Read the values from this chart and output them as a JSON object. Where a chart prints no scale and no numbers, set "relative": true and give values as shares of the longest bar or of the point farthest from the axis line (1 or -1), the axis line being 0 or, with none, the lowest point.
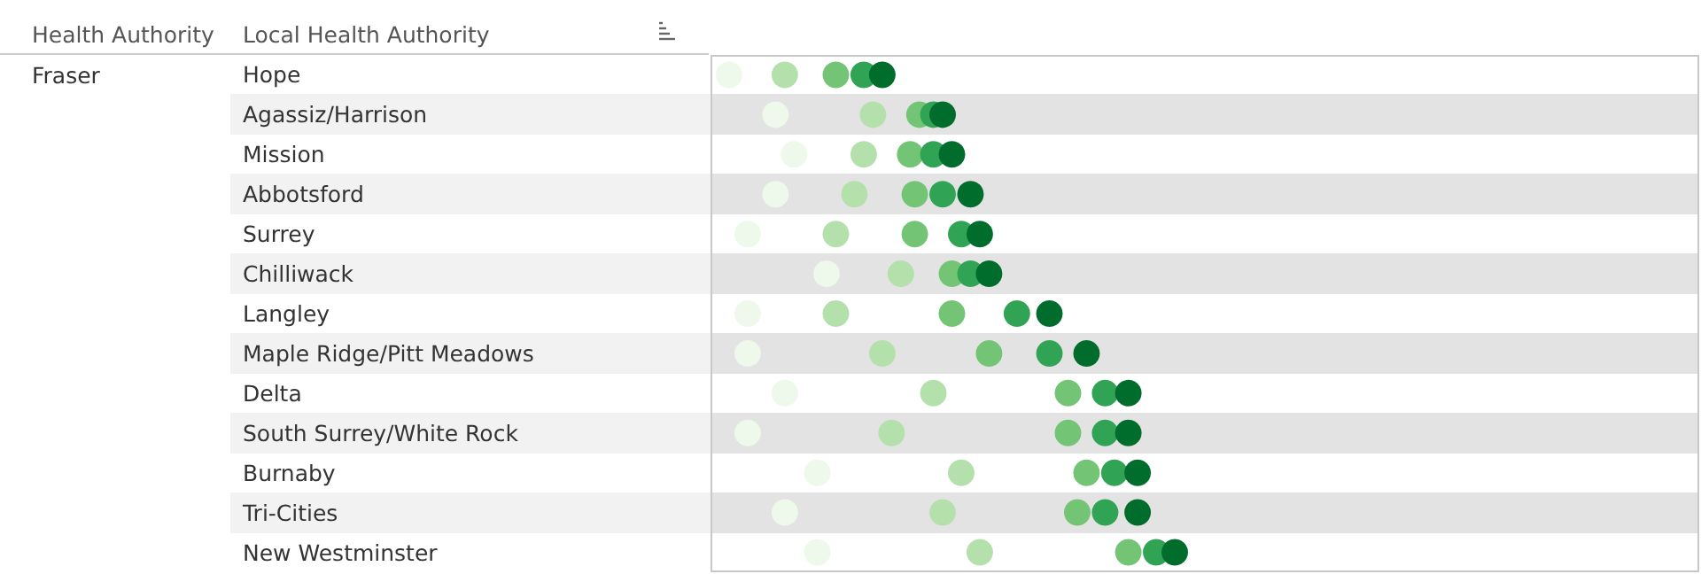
{
  "chart_data": {
    "type": "scatter",
    "relative": true,
    "marker": "circle",
    "orientation": "horizontal",
    "ylabel": "Local Health Authority",
    "annotations": [
      "Health Authority",
      "Fraser"
    ],
    "categories": [
      "Hope",
      "Agassiz/Harrison",
      "Mission",
      "Abbotsford",
      "Surrey",
      "Chilliwack",
      "Langley",
      "Maple Ridge/Pitt Meadows",
      "Delta",
      "South Surrey/White Rock",
      "Burnaby",
      "Tri-Cities",
      "New Westminster"
    ],
    "series": [
      {
        "color": "#eef8eb",
        "values": [
          0.04,
          0.14,
          0.18,
          0.14,
          0.08,
          0.25,
          0.08,
          0.08,
          0.16,
          0.08,
          0.23,
          0.16,
          0.23
        ]
      },
      {
        "color": "#b4e0ac",
        "values": [
          0.16,
          0.35,
          0.33,
          0.31,
          0.27,
          0.41,
          0.27,
          0.37,
          0.48,
          0.39,
          0.54,
          0.5,
          0.58
        ]
      },
      {
        "color": "#74c476",
        "values": [
          0.27,
          0.45,
          0.43,
          0.44,
          0.44,
          0.52,
          0.52,
          0.6,
          0.77,
          0.77,
          0.81,
          0.79,
          0.9
        ]
      },
      {
        "color": "#31a354",
        "values": [
          0.33,
          0.48,
          0.48,
          0.5,
          0.54,
          0.56,
          0.66,
          0.73,
          0.85,
          0.85,
          0.87,
          0.85,
          0.96
        ]
      },
      {
        "color": "#006d2c",
        "values": [
          0.37,
          0.5,
          0.52,
          0.56,
          0.58,
          0.6,
          0.73,
          0.81,
          0.9,
          0.9,
          0.92,
          0.92,
          1
        ]
      }
    ]
  }
}
